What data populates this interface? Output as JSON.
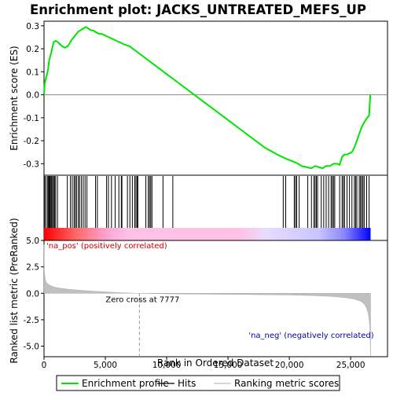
{
  "chart_data": {
    "type": "line",
    "title": "Enrichment plot: JACKS_UNTREATED_MEFS_UP",
    "xlabel": "Rank in Ordered Dataset",
    "es_panel": {
      "ylabel": "Enrichment score (ES)",
      "ylim": [
        -0.35,
        0.32
      ],
      "yticks": [
        0.3,
        0.2,
        0.1,
        0.0,
        -0.1,
        -0.2,
        -0.3
      ],
      "ytick_labels": [
        "0.3",
        "0.2",
        "0.1",
        "0.0",
        "-0.1",
        "-0.2",
        "-0.3"
      ],
      "line_color": "#00e400",
      "profile_x": [
        0,
        60,
        150,
        250,
        330,
        420,
        520,
        620,
        700,
        800,
        950,
        1100,
        1300,
        1500,
        1700,
        1900,
        2050,
        2200,
        2350,
        2500,
        2650,
        2800,
        2950,
        3100,
        3250,
        3400,
        3550,
        3700,
        3850,
        4000,
        4150,
        4300,
        4500,
        4700,
        4900,
        5100,
        5300,
        5500,
        5700,
        5900,
        6100,
        6300,
        6500,
        7000,
        8000,
        9000,
        10000,
        11000,
        12000,
        13000,
        14000,
        15000,
        16000,
        17000,
        18000,
        19000,
        19800,
        20300,
        20700,
        21000,
        21400,
        21800,
        22100,
        22400,
        22700,
        23000,
        23300,
        23600,
        23900,
        24100,
        24300,
        24500,
        24700,
        24900,
        25100,
        25300,
        25500,
        25700,
        25900,
        26100,
        26350,
        26500,
        26600
      ],
      "profile_y": [
        0.0,
        0.05,
        0.07,
        0.09,
        0.11,
        0.15,
        0.17,
        0.19,
        0.21,
        0.23,
        0.235,
        0.23,
        0.22,
        0.21,
        0.205,
        0.21,
        0.22,
        0.235,
        0.245,
        0.255,
        0.265,
        0.275,
        0.28,
        0.285,
        0.29,
        0.295,
        0.29,
        0.285,
        0.28,
        0.28,
        0.275,
        0.27,
        0.265,
        0.265,
        0.26,
        0.255,
        0.25,
        0.245,
        0.24,
        0.235,
        0.23,
        0.225,
        0.22,
        0.21,
        0.17,
        0.13,
        0.09,
        0.05,
        0.01,
        -0.03,
        -0.07,
        -0.11,
        -0.15,
        -0.19,
        -0.23,
        -0.26,
        -0.28,
        -0.29,
        -0.3,
        -0.31,
        -0.315,
        -0.32,
        -0.31,
        -0.315,
        -0.32,
        -0.31,
        -0.31,
        -0.3,
        -0.3,
        -0.305,
        -0.27,
        -0.26,
        -0.26,
        -0.255,
        -0.25,
        -0.23,
        -0.2,
        -0.17,
        -0.14,
        -0.12,
        -0.1,
        -0.09,
        0.0
      ]
    },
    "hits": {
      "positions": [
        50,
        150,
        280,
        360,
        410,
        480,
        560,
        620,
        700,
        780,
        860,
        950,
        1100,
        1900,
        2150,
        2300,
        2450,
        2550,
        2650,
        2800,
        2900,
        3050,
        3200,
        3350,
        3500,
        4200,
        4350,
        5100,
        5250,
        5500,
        5800,
        6100,
        6300,
        6350,
        6800,
        7000,
        7200,
        7400,
        7500,
        7600,
        7650,
        8300,
        8500,
        8600,
        8700,
        8800,
        9700,
        10500,
        19500,
        19700,
        20400,
        20500,
        20600,
        20800,
        21500,
        21800,
        22000,
        22100,
        22200,
        22300,
        22600,
        22800,
        23000,
        23200,
        23400,
        23500,
        23600,
        23700,
        24100,
        24300,
        24400,
        24500,
        24700,
        24900,
        25100,
        25300,
        25400,
        25500,
        25700,
        25800,
        25900,
        26000,
        26100,
        26300,
        26500
      ],
      "color_positive": "#ff0000",
      "color_negative": "#0000ff",
      "gradient_zero_color": "#ffffff"
    },
    "metric_panel": {
      "ylabel": "Ranked list metric (PreRanked)",
      "ylim": [
        -6.0,
        5.0
      ],
      "yticks": [
        5.0,
        2.5,
        0.0,
        -2.5,
        -5.0
      ],
      "ytick_labels": [
        "5.0",
        "2.5",
        "0.0",
        "-2.5",
        "-5.0"
      ],
      "fill_color": "#c0c0c0",
      "zero_cross": 7777,
      "zero_cross_label": "Zero cross at 7777",
      "pos_label": "'na_pos' (positively correlated)",
      "neg_label": "'na_neg' (negatively correlated)",
      "pos_label_color": "#cc0000",
      "neg_label_color": "#0000aa",
      "metric_x": [
        0,
        30,
        80,
        150,
        300,
        500,
        800,
        1200,
        2000,
        3000,
        4000,
        5000,
        6000,
        7000,
        7777,
        10000,
        15000,
        20000,
        22000,
        23500,
        24500,
        25300,
        25800,
        26100,
        26300,
        26450,
        26550,
        26620
      ],
      "metric_y": [
        4.6,
        2.0,
        1.5,
        1.1,
        0.9,
        0.75,
        0.6,
        0.5,
        0.38,
        0.28,
        0.2,
        0.13,
        0.07,
        0.02,
        0.0,
        -0.05,
        -0.1,
        -0.16,
        -0.22,
        -0.3,
        -0.4,
        -0.55,
        -0.75,
        -1.0,
        -1.4,
        -2.0,
        -3.0,
        -5.9
      ]
    },
    "xaxis": {
      "xlim": [
        0,
        28000
      ],
      "ticks": [
        0,
        5000,
        10000,
        15000,
        20000,
        25000
      ],
      "tick_labels": [
        "0",
        "5,000",
        "10,000",
        "15,000",
        "20,000",
        "25,000"
      ],
      "n_genes": 26620
    },
    "legend": {
      "position": "bottom",
      "items": [
        {
          "label": "Enrichment profile",
          "color": "#00e400",
          "style": "line"
        },
        {
          "label": "Hits",
          "color": "#000000",
          "style": "line"
        },
        {
          "label": "Ranking metric scores",
          "color": "#c0c0c0",
          "style": "line"
        }
      ]
    }
  }
}
